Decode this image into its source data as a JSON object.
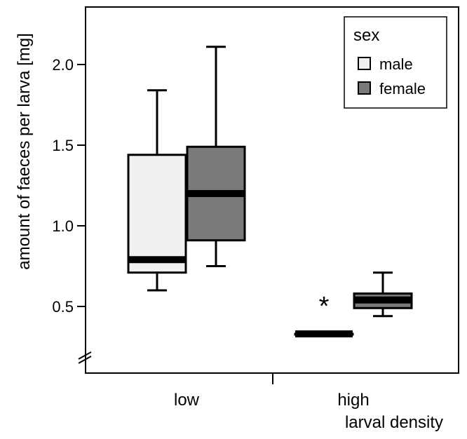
{
  "chart_data": {
    "type": "boxplot",
    "xlabel": "larval density",
    "ylabel": "amount of faeces per larva [mg]",
    "categories": [
      "low",
      "high"
    ],
    "y_ticks": [
      "0.5",
      "1.0",
      "1.5",
      "2.0"
    ],
    "axis_break": true,
    "legend": {
      "title": "sex",
      "placement": "top-right"
    },
    "series": [
      {
        "name": "male",
        "color": "#f0f0f0",
        "boxes": [
          {
            "category": "low",
            "whisker_low": 0.6,
            "q1": 0.71,
            "median": 0.79,
            "q3": 1.44,
            "whisker_high": 1.84
          },
          {
            "category": "high",
            "whisker_low": 0.33,
            "q1": 0.33,
            "median": 0.33,
            "q3": 0.33,
            "whisker_high": 0.33
          }
        ]
      },
      {
        "name": "female",
        "color": "#7a7a7a",
        "boxes": [
          {
            "category": "low",
            "whisker_low": 0.75,
            "q1": 0.91,
            "median": 1.2,
            "q3": 1.49,
            "whisker_high": 2.11
          },
          {
            "category": "high",
            "whisker_low": 0.44,
            "q1": 0.49,
            "median": 0.54,
            "q3": 0.58,
            "whisker_high": 0.71
          }
        ]
      }
    ],
    "annotations": [
      {
        "text": "*",
        "category": "high",
        "series": "male",
        "y": 0.57
      }
    ]
  }
}
